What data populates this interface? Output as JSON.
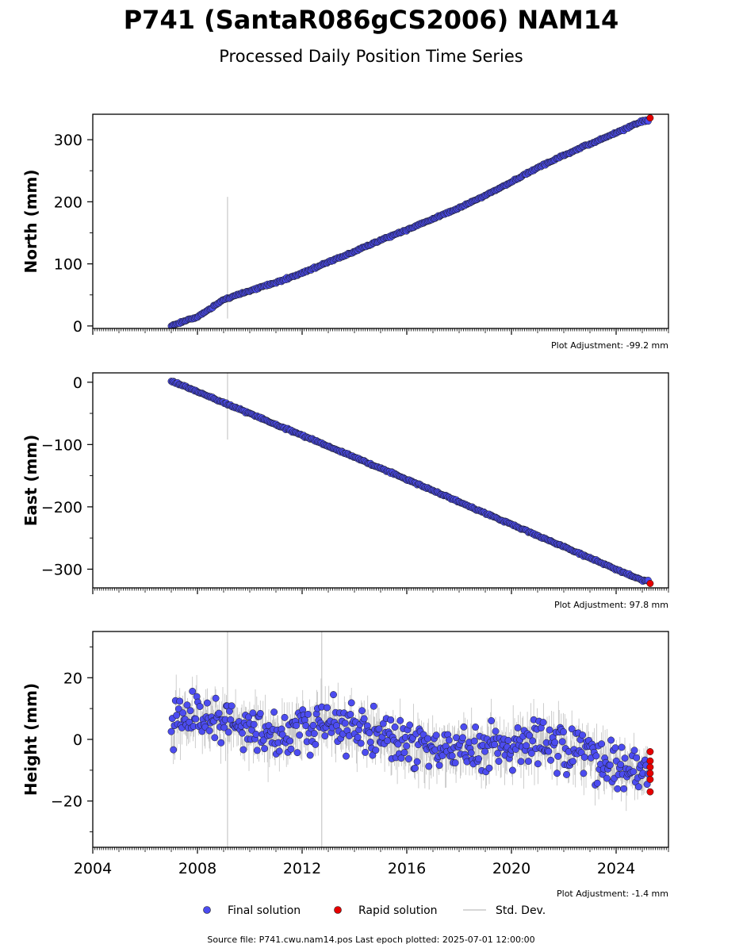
{
  "title": "P741 (SantaR086gCS2006) NAM14",
  "subtitle": "Processed Daily Position Time Series",
  "source_text": "Source file: P741.cwu.nam14.pos  Last epoch plotted: 2025-07-01 12:00:00",
  "legend": {
    "final_label": "Final solution",
    "rapid_label": "Rapid solution",
    "std_label": "Std. Dev."
  },
  "colors": {
    "final": "#4c4cf0",
    "rapid": "#e60000",
    "std": "#c8c8c8",
    "edge": "#1a1a1a"
  },
  "chart_data": [
    {
      "type": "scatter",
      "ylabel": "North (mm)",
      "adjustment_text": "Plot Adjustment: -99.2 mm",
      "xlim": [
        2004,
        2026
      ],
      "ylim": [
        -4,
        341
      ],
      "yticks": [
        0,
        100,
        200,
        300
      ],
      "x_tick_labels": [],
      "series": [
        {
          "name": "Final solution",
          "points": [
            [
              2007.0,
              0
            ],
            [
              2008.0,
              15
            ],
            [
              2009.0,
              42
            ],
            [
              2010.0,
              57
            ],
            [
              2011.0,
              70
            ],
            [
              2012.0,
              85
            ],
            [
              2013.0,
              103
            ],
            [
              2014.0,
              120
            ],
            [
              2015.0,
              138
            ],
            [
              2016.0,
              155
            ],
            [
              2017.0,
              172
            ],
            [
              2018.0,
              190
            ],
            [
              2019.0,
              210
            ],
            [
              2020.0,
              232
            ],
            [
              2021.0,
              255
            ],
            [
              2022.0,
              275
            ],
            [
              2023.0,
              293
            ],
            [
              2024.0,
              311
            ],
            [
              2025.0,
              330
            ]
          ]
        },
        {
          "name": "Rapid solution",
          "points": [
            [
              2025.3,
              335
            ]
          ]
        }
      ],
      "std_spikes": [
        [
          2009.15,
          12,
          208
        ]
      ]
    },
    {
      "type": "scatter",
      "ylabel": "East (mm)",
      "adjustment_text": "Plot Adjustment: 97.8 mm",
      "xlim": [
        2004,
        2026
      ],
      "ylim": [
        -330,
        15
      ],
      "yticks": [
        0,
        -100,
        -200,
        -300
      ],
      "x_tick_labels": [],
      "series": [
        {
          "name": "Final solution",
          "points": [
            [
              2007.0,
              2
            ],
            [
              2008.0,
              -15
            ],
            [
              2009.0,
              -33
            ],
            [
              2010.0,
              -50
            ],
            [
              2011.0,
              -68
            ],
            [
              2012.0,
              -85
            ],
            [
              2013.0,
              -103
            ],
            [
              2014.0,
              -120
            ],
            [
              2015.0,
              -138
            ],
            [
              2016.0,
              -156
            ],
            [
              2017.0,
              -174
            ],
            [
              2018.0,
              -192
            ],
            [
              2019.0,
              -210
            ],
            [
              2020.0,
              -228
            ],
            [
              2021.0,
              -246
            ],
            [
              2022.0,
              -264
            ],
            [
              2023.0,
              -282
            ],
            [
              2024.0,
              -300
            ],
            [
              2025.0,
              -318
            ]
          ]
        },
        {
          "name": "Rapid solution",
          "points": [
            [
              2025.3,
              -323
            ]
          ]
        }
      ],
      "std_spikes": [
        [
          2009.15,
          -92,
          15
        ]
      ]
    },
    {
      "type": "scatter",
      "ylabel": "Height (mm)",
      "adjustment_text": "Plot Adjustment: -1.4 mm",
      "xlim": [
        2004,
        2026
      ],
      "ylim": [
        -35,
        35
      ],
      "yticks": [
        20,
        0,
        -20
      ],
      "x_tick_labels": [
        "2004",
        "2008",
        "2012",
        "2016",
        "2020",
        "2024"
      ],
      "x_tick_values": [
        2004,
        2008,
        2012,
        2016,
        2020,
        2024
      ],
      "series": [
        {
          "name": "Final solution",
          "points": [
            [
              2007.0,
              5
            ],
            [
              2008.0,
              8
            ],
            [
              2009.0,
              6
            ],
            [
              2010.0,
              3
            ],
            [
              2011.0,
              0
            ],
            [
              2012.0,
              4
            ],
            [
              2013.0,
              5
            ],
            [
              2014.0,
              3
            ],
            [
              2015.0,
              1
            ],
            [
              2016.0,
              -2
            ],
            [
              2017.0,
              -3
            ],
            [
              2018.0,
              -4
            ],
            [
              2019.0,
              -3
            ],
            [
              2020.0,
              -2
            ],
            [
              2021.0,
              -1
            ],
            [
              2022.0,
              -2
            ],
            [
              2023.0,
              -5
            ],
            [
              2024.0,
              -9
            ],
            [
              2025.0,
              -12
            ]
          ]
        },
        {
          "name": "Rapid solution",
          "points": [
            [
              2025.3,
              -4
            ],
            [
              2025.3,
              -7
            ],
            [
              2025.3,
              -9
            ],
            [
              2025.3,
              -11
            ],
            [
              2025.3,
              -13
            ],
            [
              2025.3,
              -17
            ]
          ]
        }
      ],
      "std_spikes": [
        [
          2009.15,
          -35,
          35
        ],
        [
          2012.75,
          -35,
          35
        ]
      ]
    }
  ]
}
